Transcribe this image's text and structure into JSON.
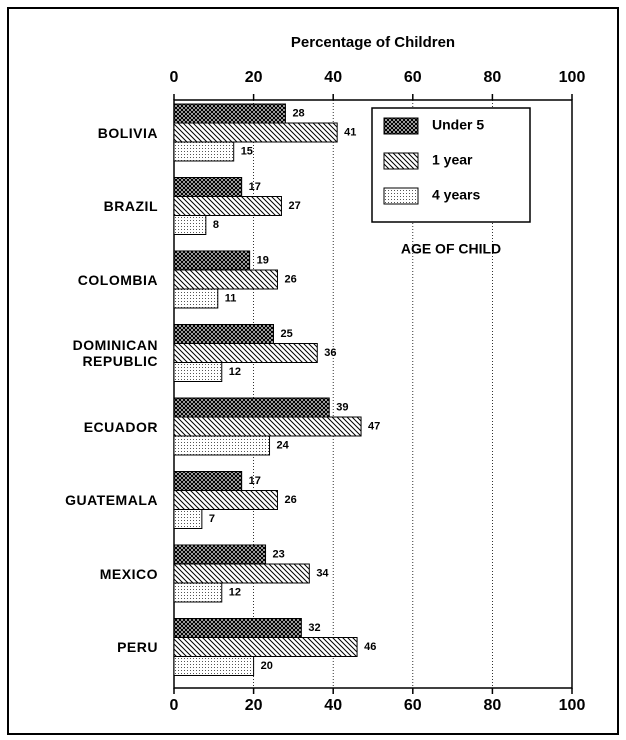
{
  "chart_data": {
    "type": "bar",
    "orientation": "horizontal",
    "title": "Percentage of Children",
    "categories": [
      "BOLIVIA",
      "BRAZIL",
      "COLOMBIA",
      "DOMINICAN REPUBLIC",
      "ECUADOR",
      "GUATEMALA",
      "MEXICO",
      "PERU"
    ],
    "series": [
      {
        "name": "Under 5",
        "color": "#000000",
        "pattern": "crosshatch",
        "values": [
          28,
          17,
          19,
          25,
          39,
          17,
          23,
          32
        ]
      },
      {
        "name": "1 year",
        "color": "#000000",
        "pattern": "diagonal",
        "values": [
          41,
          27,
          26,
          36,
          47,
          26,
          34,
          46
        ]
      },
      {
        "name": "4 years",
        "color": "#000000",
        "pattern": "dots",
        "values": [
          15,
          8,
          11,
          12,
          24,
          7,
          12,
          20
        ]
      }
    ],
    "legend_title": "AGE OF CHILD",
    "xlim": [
      0,
      100
    ],
    "xticks": [
      0,
      20,
      40,
      60,
      80,
      100
    ],
    "grid": true,
    "legend": "upper right"
  }
}
